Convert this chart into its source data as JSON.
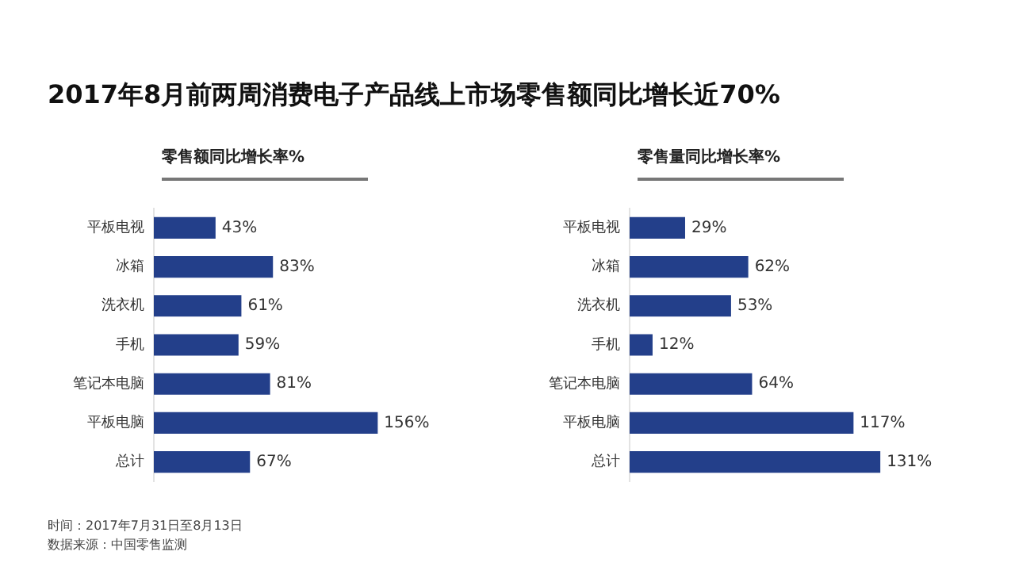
{
  "chart_data": [
    {
      "type": "bar",
      "orientation": "horizontal",
      "title": "2017年8月前两周消费电子产品线上市场零售额同比增长近70%",
      "subtitle": "零售额同比增长率%",
      "categories": [
        "平板电视",
        "冰箱",
        "洗衣机",
        "手机",
        "笔记本电脑",
        "平板电脑",
        "总计"
      ],
      "values": [
        43,
        83,
        61,
        59,
        81,
        156,
        67
      ],
      "color": "#233f8a",
      "value_labels": [
        "43%",
        "83%",
        "61%",
        "59%",
        "81%",
        "156%",
        "67%"
      ],
      "grid": false,
      "legend": false,
      "annotations": [
        "时间：2017年7月31日至8月13日",
        "数据来源：中国零售监测"
      ]
    },
    {
      "type": "bar",
      "orientation": "horizontal",
      "subtitle": "零售量同比增长率%",
      "categories": [
        "平板电视",
        "冰箱",
        "洗衣机",
        "手机",
        "笔记本电脑",
        "平板电脑",
        "总计"
      ],
      "values": [
        29,
        62,
        53,
        12,
        64,
        117,
        131
      ],
      "color": "#233f8a",
      "value_labels": [
        "29%",
        "62%",
        "53%",
        "12%",
        "64%",
        "117%",
        "131%"
      ],
      "grid": false,
      "legend": false
    }
  ]
}
